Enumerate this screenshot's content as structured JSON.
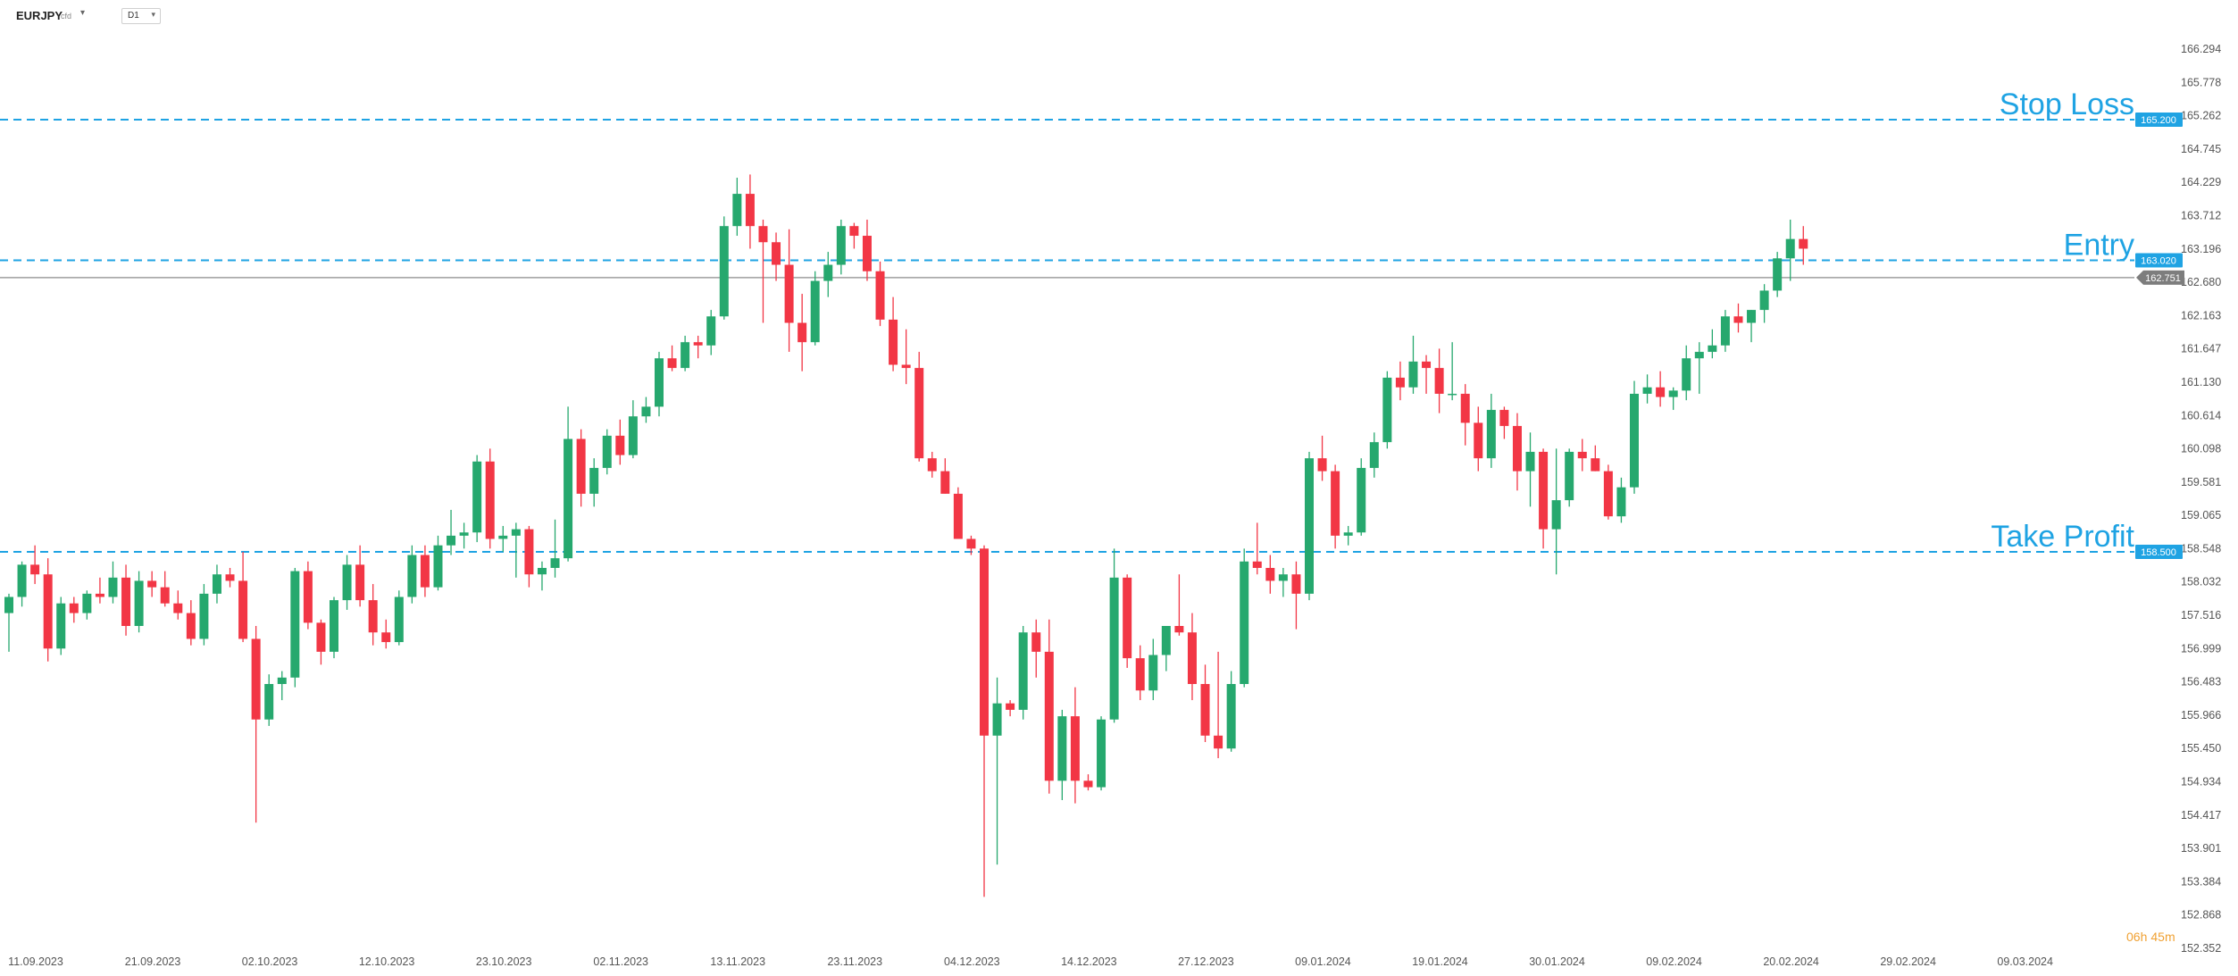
{
  "header": {
    "symbol": "EURJPY",
    "symbol_sub": "cfd",
    "timeframe": "D1"
  },
  "countdown": {
    "hours": "06",
    "hours_unit": "h",
    "minutes": "45",
    "minutes_unit": "m"
  },
  "levels": [
    {
      "key": "stop_loss",
      "label": "Stop Loss",
      "price": 165.2,
      "tag": "165.200"
    },
    {
      "key": "entry",
      "label": "Entry",
      "price": 163.02,
      "tag": "163.020"
    },
    {
      "key": "take_profit",
      "label": "Take Profit",
      "price": 158.5,
      "tag": "158.500"
    }
  ],
  "current_price": {
    "price": 162.751,
    "tag": "162.751"
  },
  "colors": {
    "bull": "#26a86e",
    "bear": "#f23645",
    "level_line": "#1fa3e3",
    "current_line": "#9e9e9e",
    "countdown": "#f0a133"
  },
  "chart_data": {
    "type": "candlestick",
    "ylim": [
      152.352,
      166.294
    ],
    "y_ticks": [
      "166.294",
      "165.778",
      "165.262",
      "164.745",
      "164.229",
      "163.712",
      "163.196",
      "162.680",
      "162.163",
      "161.647",
      "161.130",
      "160.614",
      "160.098",
      "159.581",
      "159.065",
      "158.548",
      "158.032",
      "157.516",
      "156.999",
      "156.483",
      "155.966",
      "155.450",
      "154.934",
      "154.417",
      "153.901",
      "153.384",
      "152.868",
      "152.352"
    ],
    "x_ticks": [
      {
        "label": "11.09.2023",
        "index": 0
      },
      {
        "label": "21.09.2023",
        "index": 9
      },
      {
        "label": "02.10.2023",
        "index": 18
      },
      {
        "label": "12.10.2023",
        "index": 27
      },
      {
        "label": "23.10.2023",
        "index": 36
      },
      {
        "label": "02.11.2023",
        "index": 45
      },
      {
        "label": "13.11.2023",
        "index": 54
      },
      {
        "label": "23.11.2023",
        "index": 63
      },
      {
        "label": "04.12.2023",
        "index": 72
      },
      {
        "label": "14.12.2023",
        "index": 81
      },
      {
        "label": "27.12.2023",
        "index": 90
      },
      {
        "label": "09.01.2024",
        "index": 99
      },
      {
        "label": "19.01.2024",
        "index": 108
      },
      {
        "label": "30.01.2024",
        "index": 117
      },
      {
        "label": "09.02.2024",
        "index": 126
      },
      {
        "label": "20.02.2024",
        "index": 135
      },
      {
        "label": "29.02.2024",
        "index": 144
      },
      {
        "label": "09.03.2024",
        "index": 153
      }
    ],
    "candles": [
      [
        157.55,
        157.85,
        156.95,
        157.8
      ],
      [
        157.8,
        158.35,
        157.65,
        158.3
      ],
      [
        158.3,
        158.6,
        158.0,
        158.15
      ],
      [
        158.15,
        158.4,
        156.8,
        157.0
      ],
      [
        157.0,
        157.8,
        156.9,
        157.7
      ],
      [
        157.7,
        157.8,
        157.4,
        157.55
      ],
      [
        157.55,
        157.9,
        157.45,
        157.85
      ],
      [
        157.85,
        158.1,
        157.7,
        157.8
      ],
      [
        157.8,
        158.35,
        157.7,
        158.1
      ],
      [
        158.1,
        158.3,
        157.2,
        157.35
      ],
      [
        157.35,
        158.2,
        157.25,
        158.05
      ],
      [
        158.05,
        158.2,
        157.8,
        157.95
      ],
      [
        157.95,
        158.2,
        157.65,
        157.7
      ],
      [
        157.7,
        157.9,
        157.45,
        157.55
      ],
      [
        157.55,
        157.75,
        157.05,
        157.15
      ],
      [
        157.15,
        158.0,
        157.05,
        157.85
      ],
      [
        157.85,
        158.3,
        157.7,
        158.15
      ],
      [
        158.15,
        158.25,
        157.95,
        158.05
      ],
      [
        158.05,
        158.5,
        157.1,
        157.15
      ],
      [
        157.15,
        157.35,
        154.3,
        155.9
      ],
      [
        155.9,
        156.6,
        155.8,
        156.45
      ],
      [
        156.45,
        156.65,
        156.2,
        156.55
      ],
      [
        156.55,
        158.25,
        156.4,
        158.2
      ],
      [
        158.2,
        158.35,
        157.3,
        157.4
      ],
      [
        157.4,
        157.45,
        156.75,
        156.95
      ],
      [
        156.95,
        157.8,
        156.85,
        157.75
      ],
      [
        157.75,
        158.45,
        157.6,
        158.3
      ],
      [
        158.3,
        158.6,
        157.65,
        157.75
      ],
      [
        157.75,
        158.0,
        157.05,
        157.25
      ],
      [
        157.25,
        157.45,
        157.0,
        157.1
      ],
      [
        157.1,
        157.9,
        157.05,
        157.8
      ],
      [
        157.8,
        158.6,
        157.7,
        158.45
      ],
      [
        158.45,
        158.6,
        157.8,
        157.95
      ],
      [
        157.95,
        158.75,
        157.9,
        158.6
      ],
      [
        158.6,
        159.15,
        158.45,
        158.75
      ],
      [
        158.75,
        158.95,
        158.55,
        158.8
      ],
      [
        158.8,
        160.0,
        158.65,
        159.9
      ],
      [
        159.9,
        160.1,
        158.55,
        158.7
      ],
      [
        158.7,
        158.9,
        158.5,
        158.75
      ],
      [
        158.75,
        158.95,
        158.1,
        158.85
      ],
      [
        158.85,
        158.9,
        157.95,
        158.15
      ],
      [
        158.15,
        158.35,
        157.9,
        158.25
      ],
      [
        158.25,
        159.0,
        158.1,
        158.4
      ],
      [
        158.4,
        160.75,
        158.35,
        160.25
      ],
      [
        160.25,
        160.4,
        159.2,
        159.4
      ],
      [
        159.4,
        159.95,
        159.2,
        159.8
      ],
      [
        159.8,
        160.4,
        159.7,
        160.3
      ],
      [
        160.3,
        160.55,
        159.85,
        160.0
      ],
      [
        160.0,
        160.85,
        159.95,
        160.6
      ],
      [
        160.6,
        160.9,
        160.5,
        160.75
      ],
      [
        160.75,
        161.6,
        160.6,
        161.5
      ],
      [
        161.5,
        161.7,
        161.3,
        161.35
      ],
      [
        161.35,
        161.85,
        161.3,
        161.75
      ],
      [
        161.75,
        161.85,
        161.5,
        161.7
      ],
      [
        161.7,
        162.25,
        161.55,
        162.15
      ],
      [
        162.15,
        163.7,
        162.1,
        163.55
      ],
      [
        163.55,
        164.3,
        163.4,
        164.05
      ],
      [
        164.05,
        164.35,
        163.2,
        163.55
      ],
      [
        163.55,
        163.65,
        162.05,
        163.3
      ],
      [
        163.3,
        163.45,
        162.7,
        162.95
      ],
      [
        162.95,
        163.5,
        161.6,
        162.05
      ],
      [
        162.05,
        162.5,
        161.3,
        161.75
      ],
      [
        161.75,
        162.85,
        161.7,
        162.7
      ],
      [
        162.7,
        163.15,
        162.45,
        162.95
      ],
      [
        162.95,
        163.65,
        162.8,
        163.55
      ],
      [
        163.55,
        163.6,
        163.2,
        163.4
      ],
      [
        163.4,
        163.65,
        162.7,
        162.85
      ],
      [
        162.85,
        163.0,
        162.0,
        162.1
      ],
      [
        162.1,
        162.45,
        161.3,
        161.4
      ],
      [
        161.4,
        161.95,
        161.1,
        161.35
      ],
      [
        161.35,
        161.6,
        159.9,
        159.95
      ],
      [
        159.95,
        160.05,
        159.65,
        159.75
      ],
      [
        159.75,
        159.95,
        159.4,
        159.4
      ],
      [
        159.4,
        159.5,
        158.75,
        158.7
      ],
      [
        158.7,
        158.75,
        158.45,
        158.55
      ],
      [
        158.55,
        158.6,
        153.15,
        155.65
      ],
      [
        155.65,
        156.55,
        153.65,
        156.15
      ],
      [
        156.15,
        156.2,
        155.95,
        156.05
      ],
      [
        156.05,
        157.35,
        155.9,
        157.25
      ],
      [
        157.25,
        157.45,
        156.55,
        156.95
      ],
      [
        156.95,
        157.45,
        154.75,
        154.95
      ],
      [
        154.95,
        156.05,
        154.65,
        155.95
      ],
      [
        155.95,
        156.4,
        154.6,
        154.95
      ],
      [
        154.95,
        155.05,
        154.8,
        154.85
      ],
      [
        154.85,
        155.95,
        154.8,
        155.9
      ],
      [
        155.9,
        158.55,
        155.85,
        158.1
      ],
      [
        158.1,
        158.15,
        156.7,
        156.85
      ],
      [
        156.85,
        157.05,
        156.2,
        156.35
      ],
      [
        156.35,
        157.15,
        156.2,
        156.9
      ],
      [
        156.9,
        157.35,
        156.65,
        157.35
      ],
      [
        157.35,
        158.15,
        157.2,
        157.25
      ],
      [
        157.25,
        157.55,
        156.2,
        156.45
      ],
      [
        156.45,
        156.75,
        155.55,
        155.65
      ],
      [
        155.65,
        156.95,
        155.3,
        155.45
      ],
      [
        155.45,
        156.65,
        155.4,
        156.45
      ],
      [
        156.45,
        158.55,
        156.4,
        158.35
      ],
      [
        158.35,
        158.95,
        158.15,
        158.25
      ],
      [
        158.25,
        158.45,
        157.85,
        158.05
      ],
      [
        158.05,
        158.25,
        157.8,
        158.15
      ],
      [
        158.15,
        158.35,
        157.3,
        157.85
      ],
      [
        157.85,
        160.05,
        157.75,
        159.95
      ],
      [
        159.95,
        160.3,
        159.6,
        159.75
      ],
      [
        159.75,
        159.85,
        158.55,
        158.75
      ],
      [
        158.75,
        158.9,
        158.6,
        158.8
      ],
      [
        158.8,
        159.95,
        158.75,
        159.8
      ],
      [
        159.8,
        160.35,
        159.65,
        160.2
      ],
      [
        160.2,
        161.3,
        160.1,
        161.2
      ],
      [
        161.2,
        161.45,
        160.85,
        161.05
      ],
      [
        161.05,
        161.85,
        160.95,
        161.45
      ],
      [
        161.45,
        161.55,
        160.95,
        161.35
      ],
      [
        161.35,
        161.65,
        160.65,
        160.95
      ],
      [
        160.95,
        161.75,
        160.85,
        160.95
      ],
      [
        160.95,
        161.1,
        160.15,
        160.5
      ],
      [
        160.5,
        160.75,
        159.75,
        159.95
      ],
      [
        159.95,
        160.95,
        159.8,
        160.7
      ],
      [
        160.7,
        160.75,
        160.25,
        160.45
      ],
      [
        160.45,
        160.65,
        159.45,
        159.75
      ],
      [
        159.75,
        160.35,
        159.2,
        160.05
      ],
      [
        160.05,
        160.1,
        158.55,
        158.85
      ],
      [
        158.85,
        160.1,
        158.15,
        159.3
      ],
      [
        159.3,
        160.1,
        159.2,
        160.05
      ],
      [
        160.05,
        160.25,
        159.75,
        159.95
      ],
      [
        159.95,
        160.15,
        159.75,
        159.75
      ],
      [
        159.75,
        159.85,
        159.0,
        159.05
      ],
      [
        159.05,
        159.65,
        158.95,
        159.5
      ],
      [
        159.5,
        161.15,
        159.4,
        160.95
      ],
      [
        160.95,
        161.25,
        160.8,
        161.05
      ],
      [
        161.05,
        161.3,
        160.75,
        160.9
      ],
      [
        160.9,
        161.05,
        160.7,
        161.0
      ],
      [
        161.0,
        161.7,
        160.85,
        161.5
      ],
      [
        161.5,
        161.75,
        160.95,
        161.6
      ],
      [
        161.6,
        161.95,
        161.5,
        161.7
      ],
      [
        161.7,
        162.25,
        161.6,
        162.15
      ],
      [
        162.15,
        162.35,
        161.9,
        162.05
      ],
      [
        162.05,
        162.25,
        161.75,
        162.25
      ],
      [
        162.25,
        162.65,
        162.05,
        162.55
      ],
      [
        162.55,
        163.15,
        162.45,
        163.05
      ],
      [
        163.05,
        163.65,
        162.7,
        163.35
      ],
      [
        163.35,
        163.55,
        162.95,
        163.2
      ]
    ]
  }
}
